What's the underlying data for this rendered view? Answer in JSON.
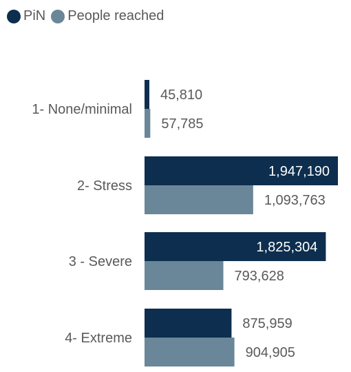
{
  "legend": [
    {
      "name": "PiN",
      "color": "#0d2e4e"
    },
    {
      "name": "People reached",
      "color": "#6a8699"
    }
  ],
  "chart_data": {
    "type": "bar",
    "orientation": "horizontal",
    "categories": [
      "1- None/minimal",
      "2- Stress",
      "3 - Severe",
      "4- Extreme"
    ],
    "series": [
      {
        "name": "PiN",
        "color": "#0d2e4e",
        "values": [
          45810,
          1947190,
          1825304,
          875959
        ],
        "labels": [
          "45,810",
          "1,947,190",
          "1,825,304",
          "875,959"
        ]
      },
      {
        "name": "People reached",
        "color": "#6a8699",
        "values": [
          57785,
          1093763,
          793628,
          904905
        ],
        "labels": [
          "57,785",
          "1,093,763",
          "793,628",
          "904,905"
        ]
      }
    ],
    "legend_position": "top-left",
    "grid": false
  }
}
